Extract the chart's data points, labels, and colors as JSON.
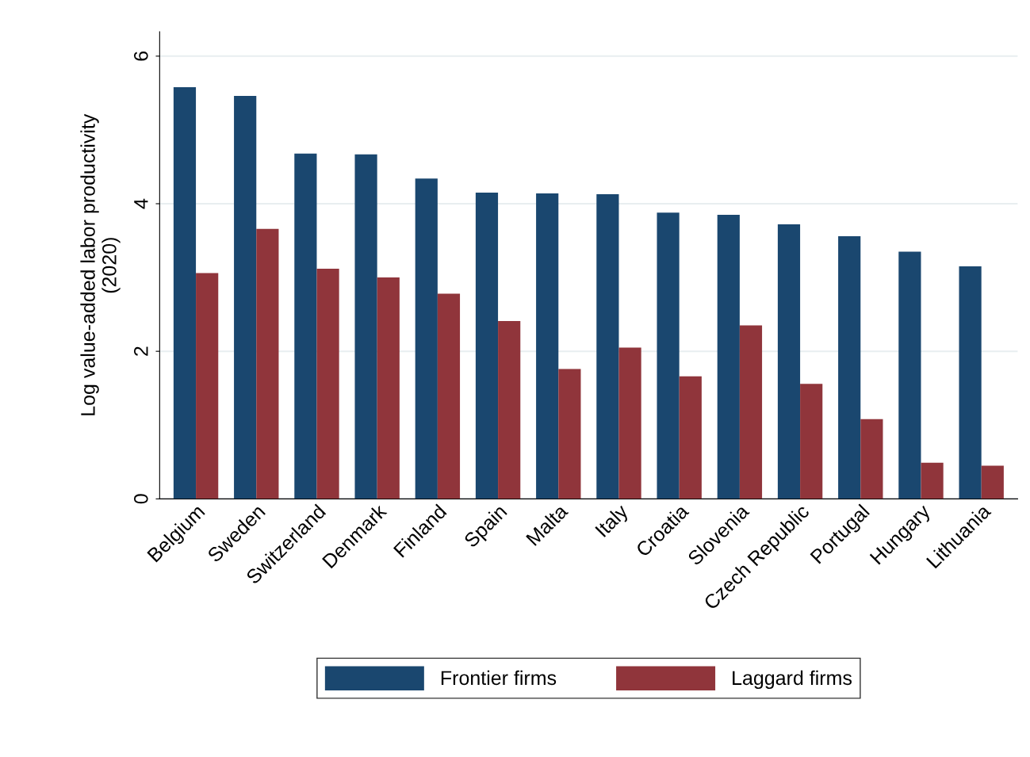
{
  "chart_data": {
    "type": "bar",
    "ylabel": "Log value-added labor productivity\n(2020)",
    "categories": [
      "Belgium",
      "Sweden",
      "Switzerland",
      "Denmark",
      "Finland",
      "Spain",
      "Malta",
      "Italy",
      "Croatia",
      "Slovenia",
      "Czech Republic",
      "Portugal",
      "Hungary",
      "Lithuania"
    ],
    "series": [
      {
        "name": "Frontier firms",
        "color": "#1a476f",
        "values": [
          5.58,
          5.46,
          4.68,
          4.67,
          4.34,
          4.15,
          4.14,
          4.13,
          3.88,
          3.85,
          3.72,
          3.56,
          3.35,
          3.15
        ]
      },
      {
        "name": "Laggard firms",
        "color": "#90353b",
        "values": [
          3.06,
          3.66,
          3.12,
          3.0,
          2.78,
          2.41,
          1.76,
          2.05,
          1.66,
          2.35,
          1.56,
          1.08,
          0.49,
          0.45
        ]
      }
    ],
    "ylim": [
      0,
      6.33
    ],
    "yticks": [
      0,
      2,
      4,
      6
    ],
    "grid": "y",
    "legend": "bottom"
  }
}
